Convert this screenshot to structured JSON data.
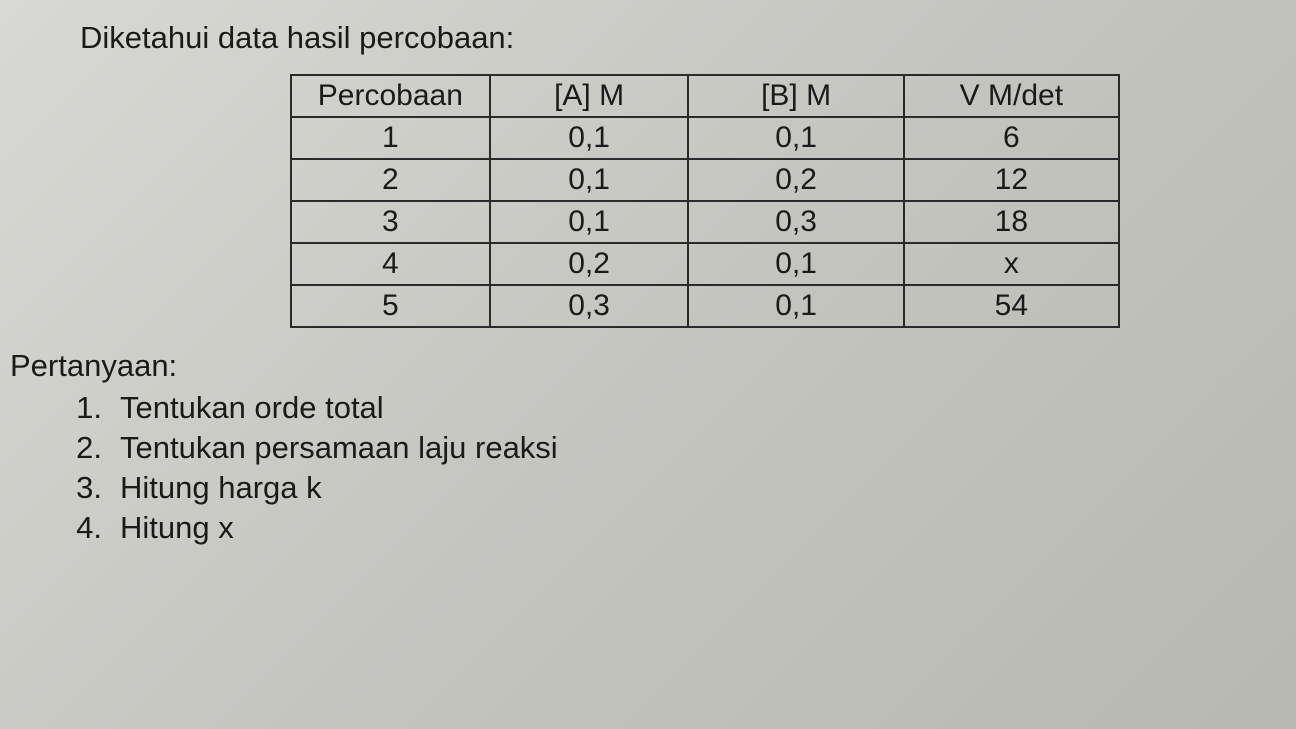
{
  "intro": "Diketahui data hasil percobaan:",
  "table": {
    "columns": [
      "Percobaan",
      "[A] M",
      "[B] M",
      "V M/det"
    ],
    "rows": [
      [
        "1",
        "0,1",
        "0,1",
        "6"
      ],
      [
        "2",
        "0,1",
        "0,2",
        "12"
      ],
      [
        "3",
        "0,1",
        "0,3",
        "18"
      ],
      [
        "4",
        "0,2",
        "0,1",
        "x"
      ],
      [
        "5",
        "0,3",
        "0,1",
        "54"
      ]
    ],
    "border_color": "#2a2a2a",
    "cell_fontsize": 30,
    "text_color": "#1a1a1a"
  },
  "questions_label": "Pertanyaan:",
  "questions": [
    {
      "num": "1.",
      "text": "Tentukan orde total"
    },
    {
      "num": "2.",
      "text": "Tentukan persamaan laju reaksi"
    },
    {
      "num": "3.",
      "text": "Hitung harga k"
    },
    {
      "num": "4.",
      "text": "Hitung x"
    }
  ],
  "background_gradient": [
    "#d8d8d4",
    "#c5c5c0",
    "#b8b8b2"
  ],
  "font_family": "Arial"
}
